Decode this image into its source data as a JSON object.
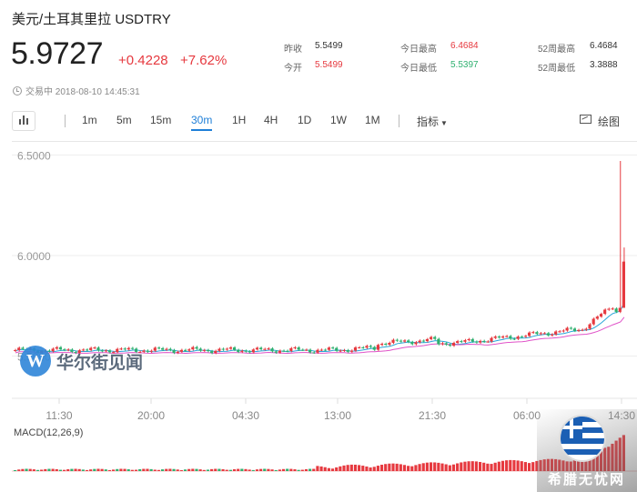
{
  "header": {
    "title": "美元/土耳其里拉  USDTRY",
    "price": "5.9727",
    "change": "+0.4228",
    "change_pct": "+7.62%",
    "status": "交易中 2018-08-10 14:45:31"
  },
  "stats": [
    {
      "label": "昨收",
      "value": "5.5499",
      "color": "neutral"
    },
    {
      "label": "今开",
      "value": "5.5499",
      "color": "red"
    },
    {
      "label": "今日最高",
      "value": "6.4684",
      "color": "red"
    },
    {
      "label": "今日最低",
      "value": "5.5397",
      "color": "green"
    },
    {
      "label": "52周最高",
      "value": "6.4684",
      "color": "neutral"
    },
    {
      "label": "52周最低",
      "value": "3.3888",
      "color": "neutral"
    }
  ],
  "toolbar": {
    "periods": [
      "1m",
      "5m",
      "15m",
      "30m",
      "1H",
      "4H",
      "1D",
      "1W",
      "1M"
    ],
    "active_period": "30m",
    "indicators_label": "指标",
    "draw_label": "绘图"
  },
  "chart_data": {
    "type": "candlestick",
    "y_ticks": [
      "6.5000",
      "6.0000",
      "5.5000"
    ],
    "ylim": [
      5.29,
      6.52
    ],
    "x_ticks": [
      "11:30",
      "20:00",
      "04:30",
      "13:00",
      "21:30",
      "06:00",
      "14:30"
    ],
    "macd_label": "MACD(12,26,9)",
    "colors": {
      "up": "#e6393f",
      "down": "#2eb06f",
      "ma1": "#29a6d9",
      "ma2": "#e052c8"
    }
  },
  "watermark": {
    "text": "华尔街见闻",
    "logo": "W"
  },
  "corner_badge": {
    "text": "希腊无忧网"
  }
}
